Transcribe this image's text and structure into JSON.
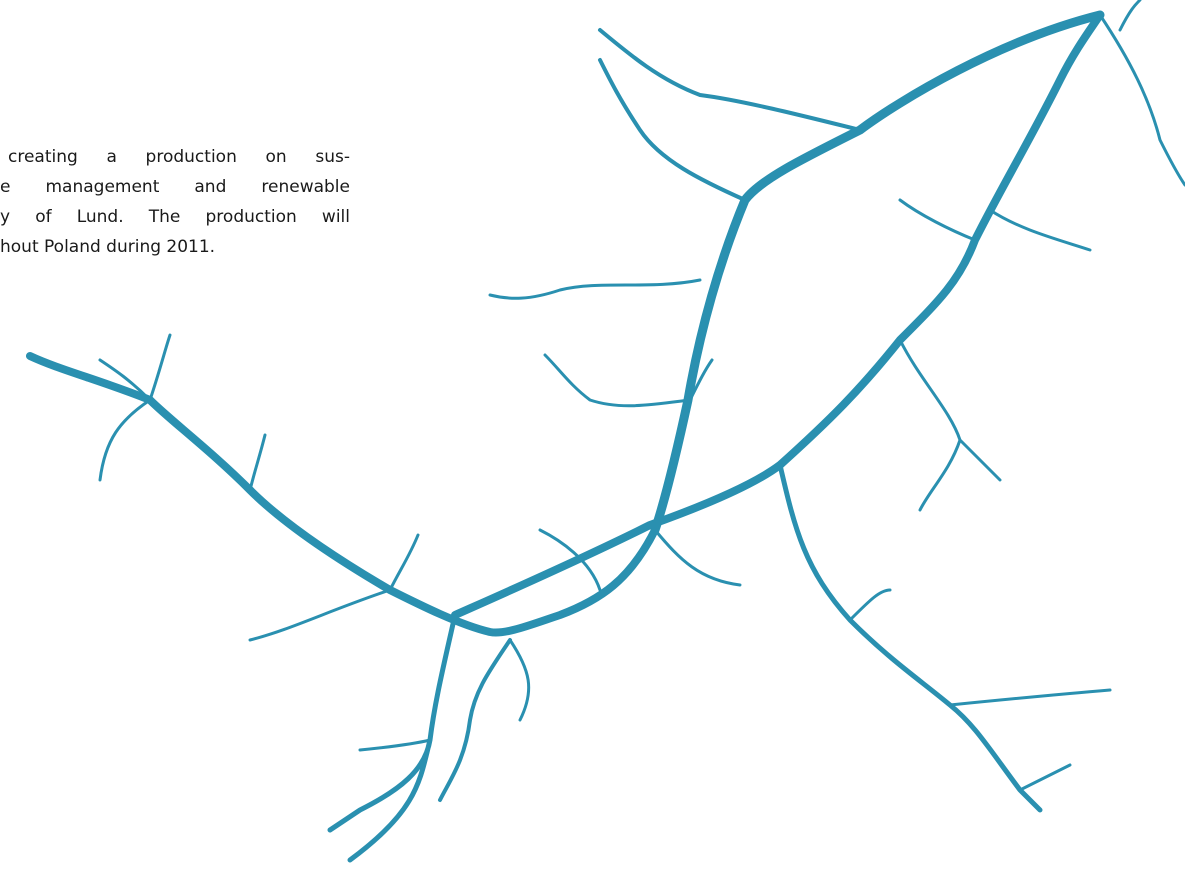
{
  "body": {
    "lines": [
      "creating a production on sus-",
      "e management and renewable",
      "y of Lund. The production will",
      "hout Poland during 2011."
    ]
  }
}
